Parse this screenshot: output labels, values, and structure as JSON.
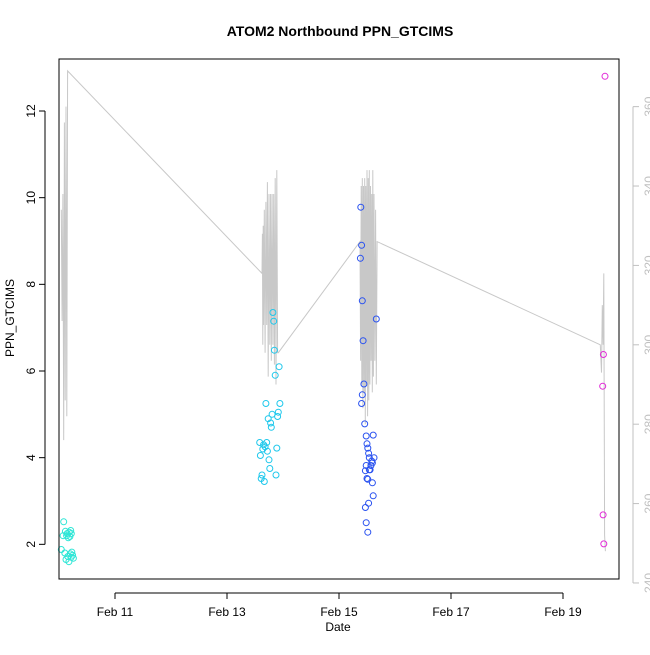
{
  "chart_data": {
    "type": "scatter",
    "title": "ATOM2 Northbound PPN_GTCIMS",
    "xlabel": "Date",
    "ylabel": "PPN_GTCIMS",
    "xlim": [
      "2020-02-10",
      "2020-02-20"
    ],
    "x_ticks": [
      {
        "value": "2020-02-11",
        "label": "Feb 11"
      },
      {
        "value": "2020-02-13",
        "label": "Feb 13"
      },
      {
        "value": "2020-02-15",
        "label": "Feb 15"
      },
      {
        "value": "2020-02-17",
        "label": "Feb 17"
      },
      {
        "value": "2020-02-19",
        "label": "Feb 19"
      }
    ],
    "ylim": [
      1.2,
      13.2
    ],
    "y_ticks": [
      2,
      4,
      6,
      8,
      10,
      12
    ],
    "y2lim": [
      241,
      372
    ],
    "y2_ticks": [
      240,
      260,
      280,
      300,
      320,
      340,
      360
    ],
    "y2_color": "#c0c0c0",
    "grid": false,
    "legend": "none",
    "series": [
      {
        "color": "#2ee6d6",
        "points": [
          [
            "2020-02-10T02:00",
            2.52
          ],
          [
            "2020-02-10T02:45",
            2.3
          ],
          [
            "2020-02-10T03:15",
            2.2
          ],
          [
            "2020-02-10T03:30",
            2.25
          ],
          [
            "2020-02-10T04:00",
            2.15
          ],
          [
            "2020-02-10T04:20",
            2.28
          ],
          [
            "2020-02-10T04:40",
            2.18
          ],
          [
            "2020-02-10T05:00",
            2.32
          ],
          [
            "2020-02-10T05:15",
            2.25
          ],
          [
            "2020-02-10T01:45",
            2.2
          ],
          [
            "2020-02-10T01:00",
            1.88
          ],
          [
            "2020-02-10T02:30",
            1.8
          ],
          [
            "2020-02-10T03:00",
            1.65
          ],
          [
            "2020-02-10T03:45",
            1.72
          ],
          [
            "2020-02-10T04:15",
            1.6
          ],
          [
            "2020-02-10T04:50",
            1.78
          ],
          [
            "2020-02-10T05:10",
            1.7
          ],
          [
            "2020-02-10T05:30",
            1.82
          ],
          [
            "2020-02-10T05:50",
            1.75
          ],
          [
            "2020-02-10T06:10",
            1.68
          ]
        ]
      },
      {
        "color": "#1ec8ec",
        "points": [
          [
            "2020-02-13T14:00",
            4.35
          ],
          [
            "2020-02-13T14:20",
            4.05
          ],
          [
            "2020-02-13T14:40",
            3.52
          ],
          [
            "2020-02-13T15:00",
            3.6
          ],
          [
            "2020-02-13T15:20",
            4.2
          ],
          [
            "2020-02-13T15:40",
            4.3
          ],
          [
            "2020-02-13T16:00",
            3.45
          ],
          [
            "2020-02-13T16:20",
            4.25
          ],
          [
            "2020-02-13T16:40",
            5.25
          ],
          [
            "2020-02-13T17:00",
            4.35
          ],
          [
            "2020-02-13T17:20",
            4.15
          ],
          [
            "2020-02-13T17:40",
            4.9
          ],
          [
            "2020-02-13T18:00",
            3.95
          ],
          [
            "2020-02-13T18:20",
            3.75
          ],
          [
            "2020-02-13T18:40",
            4.8
          ],
          [
            "2020-02-13T19:00",
            4.7
          ],
          [
            "2020-02-13T19:20",
            5.0
          ],
          [
            "2020-02-13T19:40",
            7.35
          ],
          [
            "2020-02-13T20:00",
            7.15
          ],
          [
            "2020-02-13T20:20",
            6.48
          ],
          [
            "2020-02-13T20:40",
            5.9
          ],
          [
            "2020-02-13T21:00",
            3.6
          ],
          [
            "2020-02-13T21:20",
            4.22
          ],
          [
            "2020-02-13T21:40",
            4.95
          ],
          [
            "2020-02-13T22:00",
            5.05
          ],
          [
            "2020-02-13T22:20",
            6.1
          ],
          [
            "2020-02-13T22:40",
            5.25
          ]
        ]
      },
      {
        "color": "#2a52f0",
        "points": [
          [
            "2020-02-15T09:20",
            9.78
          ],
          [
            "2020-02-15T09:40",
            8.9
          ],
          [
            "2020-02-15T09:10",
            8.6
          ],
          [
            "2020-02-15T10:00",
            7.62
          ],
          [
            "2020-02-15T10:20",
            6.7
          ],
          [
            "2020-02-15T10:00",
            5.45
          ],
          [
            "2020-02-15T09:40",
            5.25
          ],
          [
            "2020-02-15T10:40",
            5.7
          ],
          [
            "2020-02-15T11:00",
            4.78
          ],
          [
            "2020-02-15T11:40",
            4.5
          ],
          [
            "2020-02-15T12:00",
            4.32
          ],
          [
            "2020-02-15T12:20",
            4.22
          ],
          [
            "2020-02-15T11:20",
            3.7
          ],
          [
            "2020-02-15T11:40",
            3.82
          ],
          [
            "2020-02-15T12:40",
            4.1
          ],
          [
            "2020-02-15T13:00",
            4.0
          ],
          [
            "2020-02-15T13:20",
            3.72
          ],
          [
            "2020-02-15T13:40",
            3.82
          ],
          [
            "2020-02-15T14:00",
            3.92
          ],
          [
            "2020-02-15T14:20",
            3.88
          ],
          [
            "2020-02-15T12:20",
            3.5
          ],
          [
            "2020-02-15T13:00",
            3.72
          ],
          [
            "2020-02-15T14:20",
            3.42
          ],
          [
            "2020-02-15T14:40",
            4.52
          ],
          [
            "2020-02-15T15:00",
            4.0
          ],
          [
            "2020-02-15T12:00",
            3.52
          ],
          [
            "2020-02-15T11:20",
            2.85
          ],
          [
            "2020-02-15T12:40",
            2.95
          ],
          [
            "2020-02-15T14:40",
            3.12
          ],
          [
            "2020-02-15T11:40",
            2.5
          ],
          [
            "2020-02-15T12:20",
            2.28
          ],
          [
            "2020-02-15T16:00",
            7.2
          ]
        ]
      },
      {
        "color": "#e22cd8",
        "points": [
          [
            "2020-02-19T18:00",
            12.8
          ],
          [
            "2020-02-19T17:20",
            6.38
          ],
          [
            "2020-02-19T17:00",
            5.65
          ],
          [
            "2020-02-19T17:10",
            2.68
          ],
          [
            "2020-02-19T17:30",
            2.01
          ]
        ]
      }
    ],
    "trace": {
      "axis": "y2",
      "color": "#c8c8c8",
      "points": [
        [
          "2020-02-10T01:00",
          334
        ],
        [
          "2020-02-10T01:20",
          306
        ],
        [
          "2020-02-10T01:40",
          338
        ],
        [
          "2020-02-10T02:00",
          276
        ],
        [
          "2020-02-10T02:20",
          356
        ],
        [
          "2020-02-10T02:40",
          286
        ],
        [
          "2020-02-10T03:00",
          360
        ],
        [
          "2020-02-10T03:20",
          282
        ],
        [
          "2020-02-10T03:40",
          369
        ],
        [
          "2020-02-13T15:00",
          318
        ],
        [
          "2020-02-13T15:10",
          328
        ],
        [
          "2020-02-13T15:20",
          300
        ],
        [
          "2020-02-13T15:30",
          330
        ],
        [
          "2020-02-13T15:40",
          305
        ],
        [
          "2020-02-13T16:00",
          334
        ],
        [
          "2020-02-13T16:20",
          298
        ],
        [
          "2020-02-13T16:40",
          336
        ],
        [
          "2020-02-13T17:00",
          305
        ],
        [
          "2020-02-13T17:20",
          341
        ],
        [
          "2020-02-13T17:40",
          292
        ],
        [
          "2020-02-13T18:00",
          338
        ],
        [
          "2020-02-13T18:20",
          300
        ],
        [
          "2020-02-13T18:40",
          338
        ],
        [
          "2020-02-13T19:00",
          296
        ],
        [
          "2020-02-13T19:20",
          338
        ],
        [
          "2020-02-13T19:40",
          300
        ],
        [
          "2020-02-13T20:00",
          338
        ],
        [
          "2020-02-13T20:20",
          295
        ],
        [
          "2020-02-13T20:40",
          342
        ],
        [
          "2020-02-13T21:00",
          290
        ],
        [
          "2020-02-13T21:20",
          344
        ],
        [
          "2020-02-13T21:40",
          298
        ],
        [
          "2020-02-13T22:00",
          298
        ],
        [
          "2020-02-15T09:00",
          326
        ],
        [
          "2020-02-15T09:15",
          296
        ],
        [
          "2020-02-15T09:30",
          340
        ],
        [
          "2020-02-15T09:45",
          290
        ],
        [
          "2020-02-15T10:00",
          342
        ],
        [
          "2020-02-15T10:15",
          284
        ],
        [
          "2020-02-15T10:30",
          340
        ],
        [
          "2020-02-15T10:45",
          288
        ],
        [
          "2020-02-15T11:00",
          342
        ],
        [
          "2020-02-15T11:15",
          280
        ],
        [
          "2020-02-15T11:30",
          340
        ],
        [
          "2020-02-15T11:45",
          290
        ],
        [
          "2020-02-15T12:00",
          344
        ],
        [
          "2020-02-15T12:15",
          282
        ],
        [
          "2020-02-15T12:30",
          342
        ],
        [
          "2020-02-15T12:45",
          286
        ],
        [
          "2020-02-15T13:00",
          344
        ],
        [
          "2020-02-15T13:15",
          290
        ],
        [
          "2020-02-15T13:30",
          340
        ],
        [
          "2020-02-15T13:45",
          296
        ],
        [
          "2020-02-15T14:00",
          338
        ],
        [
          "2020-02-15T14:15",
          288
        ],
        [
          "2020-02-15T14:30",
          344
        ],
        [
          "2020-02-15T14:45",
          292
        ],
        [
          "2020-02-15T15:00",
          338
        ],
        [
          "2020-02-15T15:20",
          296
        ],
        [
          "2020-02-15T15:40",
          334
        ],
        [
          "2020-02-15T16:00",
          290
        ],
        [
          "2020-02-15T16:20",
          326
        ],
        [
          "2020-02-19T16:00",
          300
        ],
        [
          "2020-02-19T16:30",
          293
        ],
        [
          "2020-02-19T16:50",
          310
        ],
        [
          "2020-02-19T17:10",
          300
        ],
        [
          "2020-02-19T17:30",
          318
        ],
        [
          "2020-02-19T17:50",
          252
        ],
        [
          "2020-02-19T18:10",
          248
        ]
      ]
    }
  }
}
